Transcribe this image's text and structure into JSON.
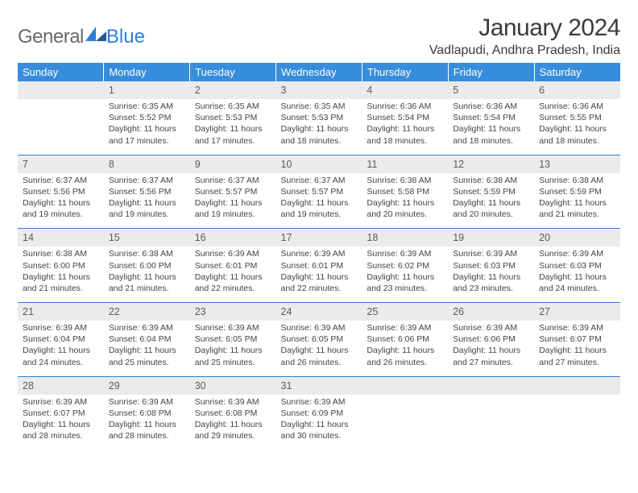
{
  "brand": {
    "part1": "General",
    "part2": "Blue"
  },
  "header": {
    "title": "January 2024",
    "location": "Vadlapudi, Andhra Pradesh, India"
  },
  "styling": {
    "type": "table",
    "columns": 7,
    "header_bg": "#378ddb",
    "header_text_color": "#ffffff",
    "daynum_bg": "#ebebeb",
    "separator_color": "#2f7fd4",
    "body_bg": "#ffffff",
    "title_fontsize": 30,
    "location_fontsize": 16,
    "dayname_fontsize": 13,
    "daynum_fontsize": 12.5,
    "detail_fontsize": 10.5,
    "logo_color": "#2f7fd4",
    "text_color": "#444444"
  },
  "daynames": [
    "Sunday",
    "Monday",
    "Tuesday",
    "Wednesday",
    "Thursday",
    "Friday",
    "Saturday"
  ],
  "weeks": [
    [
      null,
      {
        "num": "1",
        "sunrise": "Sunrise: 6:35 AM",
        "sunset": "Sunset: 5:52 PM",
        "daylight1": "Daylight: 11 hours",
        "daylight2": "and 17 minutes."
      },
      {
        "num": "2",
        "sunrise": "Sunrise: 6:35 AM",
        "sunset": "Sunset: 5:53 PM",
        "daylight1": "Daylight: 11 hours",
        "daylight2": "and 17 minutes."
      },
      {
        "num": "3",
        "sunrise": "Sunrise: 6:35 AM",
        "sunset": "Sunset: 5:53 PM",
        "daylight1": "Daylight: 11 hours",
        "daylight2": "and 18 minutes."
      },
      {
        "num": "4",
        "sunrise": "Sunrise: 6:36 AM",
        "sunset": "Sunset: 5:54 PM",
        "daylight1": "Daylight: 11 hours",
        "daylight2": "and 18 minutes."
      },
      {
        "num": "5",
        "sunrise": "Sunrise: 6:36 AM",
        "sunset": "Sunset: 5:54 PM",
        "daylight1": "Daylight: 11 hours",
        "daylight2": "and 18 minutes."
      },
      {
        "num": "6",
        "sunrise": "Sunrise: 6:36 AM",
        "sunset": "Sunset: 5:55 PM",
        "daylight1": "Daylight: 11 hours",
        "daylight2": "and 18 minutes."
      }
    ],
    [
      {
        "num": "7",
        "sunrise": "Sunrise: 6:37 AM",
        "sunset": "Sunset: 5:56 PM",
        "daylight1": "Daylight: 11 hours",
        "daylight2": "and 19 minutes."
      },
      {
        "num": "8",
        "sunrise": "Sunrise: 6:37 AM",
        "sunset": "Sunset: 5:56 PM",
        "daylight1": "Daylight: 11 hours",
        "daylight2": "and 19 minutes."
      },
      {
        "num": "9",
        "sunrise": "Sunrise: 6:37 AM",
        "sunset": "Sunset: 5:57 PM",
        "daylight1": "Daylight: 11 hours",
        "daylight2": "and 19 minutes."
      },
      {
        "num": "10",
        "sunrise": "Sunrise: 6:37 AM",
        "sunset": "Sunset: 5:57 PM",
        "daylight1": "Daylight: 11 hours",
        "daylight2": "and 19 minutes."
      },
      {
        "num": "11",
        "sunrise": "Sunrise: 6:38 AM",
        "sunset": "Sunset: 5:58 PM",
        "daylight1": "Daylight: 11 hours",
        "daylight2": "and 20 minutes."
      },
      {
        "num": "12",
        "sunrise": "Sunrise: 6:38 AM",
        "sunset": "Sunset: 5:59 PM",
        "daylight1": "Daylight: 11 hours",
        "daylight2": "and 20 minutes."
      },
      {
        "num": "13",
        "sunrise": "Sunrise: 6:38 AM",
        "sunset": "Sunset: 5:59 PM",
        "daylight1": "Daylight: 11 hours",
        "daylight2": "and 21 minutes."
      }
    ],
    [
      {
        "num": "14",
        "sunrise": "Sunrise: 6:38 AM",
        "sunset": "Sunset: 6:00 PM",
        "daylight1": "Daylight: 11 hours",
        "daylight2": "and 21 minutes."
      },
      {
        "num": "15",
        "sunrise": "Sunrise: 6:38 AM",
        "sunset": "Sunset: 6:00 PM",
        "daylight1": "Daylight: 11 hours",
        "daylight2": "and 21 minutes."
      },
      {
        "num": "16",
        "sunrise": "Sunrise: 6:39 AM",
        "sunset": "Sunset: 6:01 PM",
        "daylight1": "Daylight: 11 hours",
        "daylight2": "and 22 minutes."
      },
      {
        "num": "17",
        "sunrise": "Sunrise: 6:39 AM",
        "sunset": "Sunset: 6:01 PM",
        "daylight1": "Daylight: 11 hours",
        "daylight2": "and 22 minutes."
      },
      {
        "num": "18",
        "sunrise": "Sunrise: 6:39 AM",
        "sunset": "Sunset: 6:02 PM",
        "daylight1": "Daylight: 11 hours",
        "daylight2": "and 23 minutes."
      },
      {
        "num": "19",
        "sunrise": "Sunrise: 6:39 AM",
        "sunset": "Sunset: 6:03 PM",
        "daylight1": "Daylight: 11 hours",
        "daylight2": "and 23 minutes."
      },
      {
        "num": "20",
        "sunrise": "Sunrise: 6:39 AM",
        "sunset": "Sunset: 6:03 PM",
        "daylight1": "Daylight: 11 hours",
        "daylight2": "and 24 minutes."
      }
    ],
    [
      {
        "num": "21",
        "sunrise": "Sunrise: 6:39 AM",
        "sunset": "Sunset: 6:04 PM",
        "daylight1": "Daylight: 11 hours",
        "daylight2": "and 24 minutes."
      },
      {
        "num": "22",
        "sunrise": "Sunrise: 6:39 AM",
        "sunset": "Sunset: 6:04 PM",
        "daylight1": "Daylight: 11 hours",
        "daylight2": "and 25 minutes."
      },
      {
        "num": "23",
        "sunrise": "Sunrise: 6:39 AM",
        "sunset": "Sunset: 6:05 PM",
        "daylight1": "Daylight: 11 hours",
        "daylight2": "and 25 minutes."
      },
      {
        "num": "24",
        "sunrise": "Sunrise: 6:39 AM",
        "sunset": "Sunset: 6:05 PM",
        "daylight1": "Daylight: 11 hours",
        "daylight2": "and 26 minutes."
      },
      {
        "num": "25",
        "sunrise": "Sunrise: 6:39 AM",
        "sunset": "Sunset: 6:06 PM",
        "daylight1": "Daylight: 11 hours",
        "daylight2": "and 26 minutes."
      },
      {
        "num": "26",
        "sunrise": "Sunrise: 6:39 AM",
        "sunset": "Sunset: 6:06 PM",
        "daylight1": "Daylight: 11 hours",
        "daylight2": "and 27 minutes."
      },
      {
        "num": "27",
        "sunrise": "Sunrise: 6:39 AM",
        "sunset": "Sunset: 6:07 PM",
        "daylight1": "Daylight: 11 hours",
        "daylight2": "and 27 minutes."
      }
    ],
    [
      {
        "num": "28",
        "sunrise": "Sunrise: 6:39 AM",
        "sunset": "Sunset: 6:07 PM",
        "daylight1": "Daylight: 11 hours",
        "daylight2": "and 28 minutes."
      },
      {
        "num": "29",
        "sunrise": "Sunrise: 6:39 AM",
        "sunset": "Sunset: 6:08 PM",
        "daylight1": "Daylight: 11 hours",
        "daylight2": "and 28 minutes."
      },
      {
        "num": "30",
        "sunrise": "Sunrise: 6:39 AM",
        "sunset": "Sunset: 6:08 PM",
        "daylight1": "Daylight: 11 hours",
        "daylight2": "and 29 minutes."
      },
      {
        "num": "31",
        "sunrise": "Sunrise: 6:39 AM",
        "sunset": "Sunset: 6:09 PM",
        "daylight1": "Daylight: 11 hours",
        "daylight2": "and 30 minutes."
      },
      null,
      null,
      null
    ]
  ]
}
